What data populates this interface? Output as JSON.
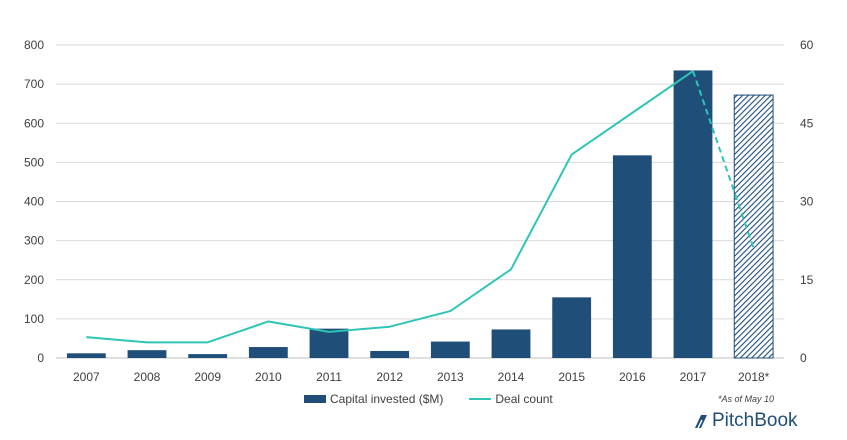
{
  "colors": {
    "bar": "#1f4e79",
    "line": "#2ec4b6",
    "grid": "#d9d9d9",
    "text": "#404040"
  },
  "chart_data": {
    "type": "bar",
    "title": "",
    "xlabel": "",
    "ylabel": "",
    "categories": [
      "2007",
      "2008",
      "2009",
      "2010",
      "2011",
      "2012",
      "2013",
      "2014",
      "2015",
      "2016",
      "2017",
      "2018*"
    ],
    "ylim": [
      0,
      800
    ],
    "y_ticks": [
      0,
      100,
      200,
      300,
      400,
      500,
      600,
      700,
      800
    ],
    "y2lim": [
      0,
      60
    ],
    "y2_ticks": [
      0,
      15,
      30,
      45,
      60
    ],
    "grid": true,
    "legend_position": "bottom",
    "series": [
      {
        "name": "Capital invested ($M)",
        "type": "bar",
        "axis": "left",
        "values": [
          12,
          20,
          10,
          28,
          75,
          18,
          42,
          73,
          155,
          518,
          735,
          672
        ],
        "hatched_categories": [
          "2018*"
        ]
      },
      {
        "name": "Deal count",
        "type": "line",
        "axis": "right",
        "values": [
          4,
          3,
          3,
          7,
          5,
          6,
          9,
          17,
          39,
          47,
          55,
          21
        ],
        "dashed_from": "2017"
      }
    ]
  },
  "footnote": "*As of May 10",
  "brand": "PitchBook",
  "brand_icon": "pitchbook-logo-icon"
}
